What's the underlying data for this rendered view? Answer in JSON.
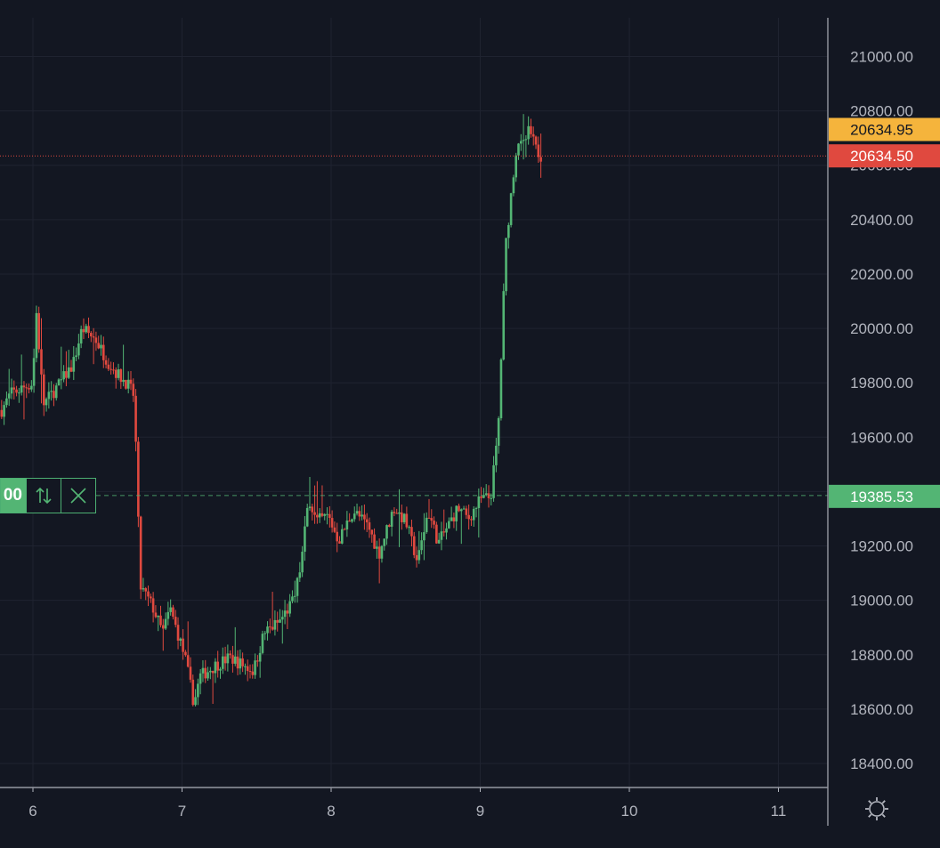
{
  "chart_data": {
    "type": "candlestick",
    "x_axis": {
      "ticks": [
        "6",
        "7",
        "8",
        "9",
        "10",
        "11"
      ]
    },
    "y_axis": {
      "ticks": [
        "21000.00",
        "20800.00",
        "20600.00",
        "20400.00",
        "20200.00",
        "20000.00",
        "19800.00",
        "19600.00",
        "19400.00",
        "19200.00",
        "19000.00",
        "18800.00",
        "18600.00",
        "18400.00"
      ],
      "range": [
        18320,
        21200
      ]
    },
    "price_tags": {
      "bid": {
        "label": "20634.95",
        "value": 20634.95,
        "color": "#f5b43c"
      },
      "last": {
        "label": "20634.50",
        "value": 20634.5,
        "color": "#e0493f"
      },
      "order": {
        "label": "19385.53",
        "value": 19385.53,
        "color": "#53b574"
      }
    },
    "order_widget": {
      "qty_text": "00"
    },
    "grid": true,
    "colors": {
      "up": "#53b574",
      "down": "#e0493f",
      "background": "#131722",
      "grid": "#1f2330",
      "axis": "#b2b5be"
    },
    "anchors": [
      [
        5.79,
        19700
      ],
      [
        5.85,
        19760
      ],
      [
        5.93,
        19780
      ],
      [
        6.0,
        19800
      ],
      [
        6.02,
        20080
      ],
      [
        6.07,
        19720
      ],
      [
        6.17,
        19790
      ],
      [
        6.27,
        19870
      ],
      [
        6.33,
        20000
      ],
      [
        6.42,
        19960
      ],
      [
        6.5,
        19880
      ],
      [
        6.57,
        19830
      ],
      [
        6.63,
        19800
      ],
      [
        6.68,
        19750
      ],
      [
        6.72,
        19050
      ],
      [
        6.8,
        18980
      ],
      [
        6.87,
        18880
      ],
      [
        6.92,
        18970
      ],
      [
        7.02,
        18790
      ],
      [
        7.08,
        18620
      ],
      [
        7.12,
        18720
      ],
      [
        7.22,
        18760
      ],
      [
        7.32,
        18790
      ],
      [
        7.48,
        18740
      ],
      [
        7.55,
        18880
      ],
      [
        7.65,
        18920
      ],
      [
        7.75,
        19000
      ],
      [
        7.8,
        19140
      ],
      [
        7.85,
        19380
      ],
      [
        7.9,
        19290
      ],
      [
        7.98,
        19310
      ],
      [
        8.05,
        19220
      ],
      [
        8.15,
        19330
      ],
      [
        8.25,
        19270
      ],
      [
        8.32,
        19170
      ],
      [
        8.42,
        19340
      ],
      [
        8.5,
        19290
      ],
      [
        8.58,
        19140
      ],
      [
        8.65,
        19330
      ],
      [
        8.72,
        19210
      ],
      [
        8.78,
        19270
      ],
      [
        8.85,
        19340
      ],
      [
        8.92,
        19300
      ],
      [
        9.0,
        19370
      ],
      [
        9.07,
        19380
      ],
      [
        9.12,
        19620
      ],
      [
        9.17,
        20300
      ],
      [
        9.22,
        20560
      ],
      [
        9.25,
        20700
      ],
      [
        9.28,
        20660
      ],
      [
        9.33,
        20730
      ],
      [
        9.37,
        20660
      ],
      [
        9.41,
        20634.5
      ]
    ]
  }
}
